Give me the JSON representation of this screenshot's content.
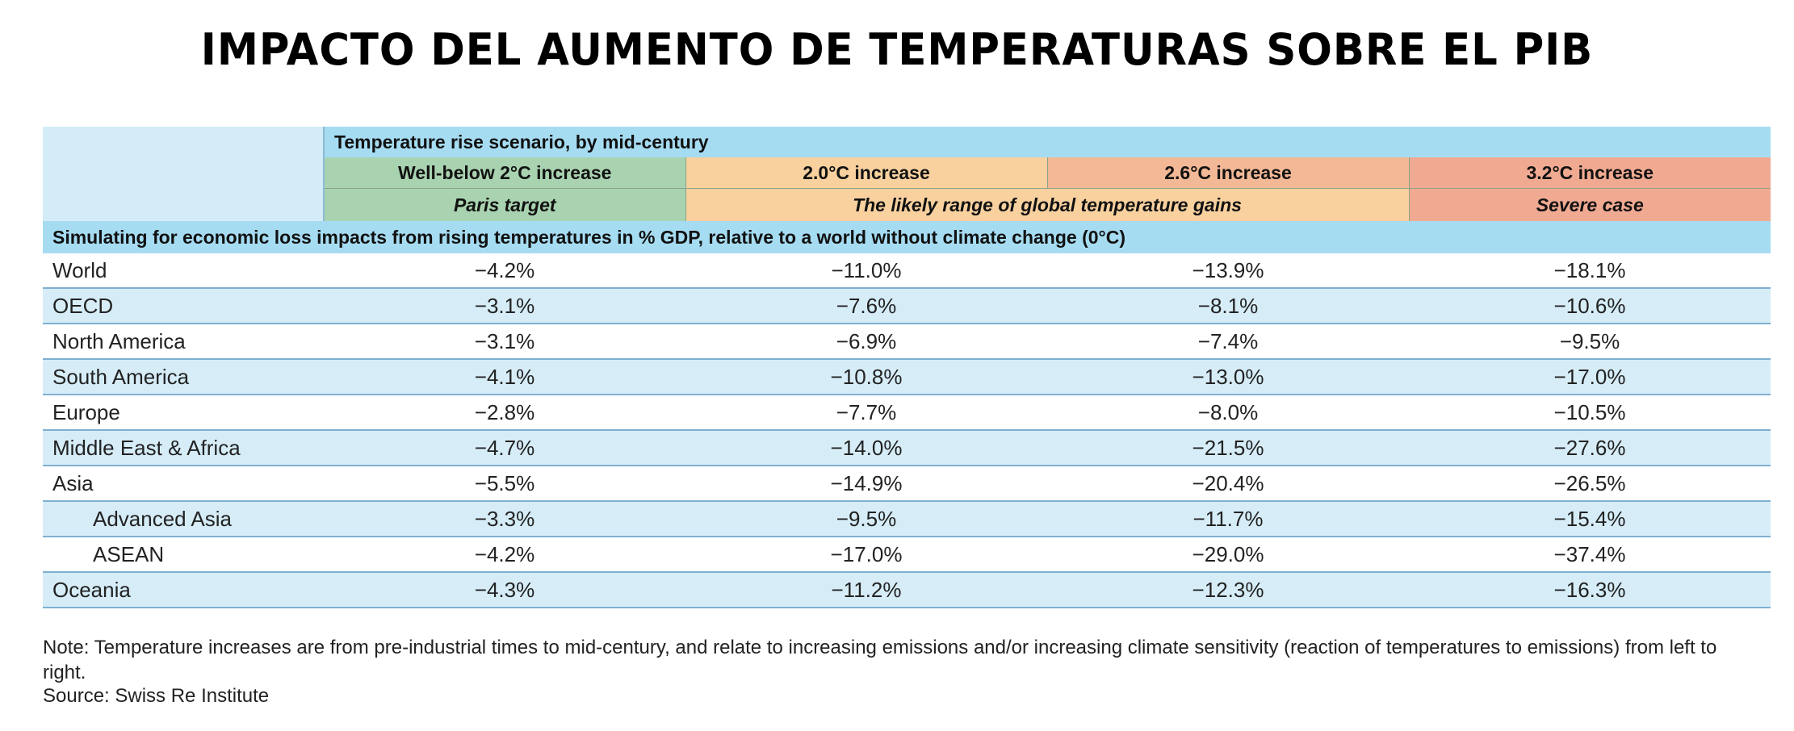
{
  "title": "IMPACTO DEL AUMENTO DE TEMPERATURAS SOBRE EL PIB",
  "header": {
    "scenario_label": "Temperature rise scenario, by mid-century",
    "columns": [
      "Well-below 2°C increase",
      "2.0°C increase",
      "2.6°C increase",
      "3.2°C increase"
    ],
    "groups": {
      "paris": "Paris target",
      "likely": "The likely range of global temperature gains",
      "severe": "Severe case"
    },
    "simulation_label": "Simulating for economic loss impacts from rising temperatures in % GDP, relative to a world without climate change (0°C)"
  },
  "colors": {
    "header_blue": "#a6dcf2",
    "row_blue": "#d6edf8",
    "green": "#a9d3b0",
    "orange": "#f8d19f",
    "salmon": "#f3b896",
    "red": "#f1aa92"
  },
  "chart_data": {
    "type": "table",
    "columns": [
      "Well-below 2°C increase",
      "2.0°C increase",
      "2.6°C increase",
      "3.2°C increase"
    ],
    "rows": [
      {
        "region": "World",
        "indent": false,
        "values": [
          "−4.2%",
          "−11.0%",
          "−13.9%",
          "−18.1%"
        ]
      },
      {
        "region": "OECD",
        "indent": false,
        "values": [
          "−3.1%",
          "−7.6%",
          "−8.1%",
          "−10.6%"
        ]
      },
      {
        "region": "North America",
        "indent": false,
        "values": [
          "−3.1%",
          "−6.9%",
          "−7.4%",
          "−9.5%"
        ]
      },
      {
        "region": "South America",
        "indent": false,
        "values": [
          "−4.1%",
          "−10.8%",
          "−13.0%",
          "−17.0%"
        ]
      },
      {
        "region": "Europe",
        "indent": false,
        "values": [
          "−2.8%",
          "−7.7%",
          "−8.0%",
          "−10.5%"
        ]
      },
      {
        "region": "Middle East & Africa",
        "indent": false,
        "values": [
          "−4.7%",
          "−14.0%",
          "−21.5%",
          "−27.6%"
        ]
      },
      {
        "region": "Asia",
        "indent": false,
        "values": [
          "−5.5%",
          "−14.9%",
          "−20.4%",
          "−26.5%"
        ]
      },
      {
        "region": "Advanced Asia",
        "indent": true,
        "values": [
          "−3.3%",
          "−9.5%",
          "−11.7%",
          "−15.4%"
        ]
      },
      {
        "region": "ASEAN",
        "indent": true,
        "values": [
          "−4.2%",
          "−17.0%",
          "−29.0%",
          "−37.4%"
        ]
      },
      {
        "region": "Oceania",
        "indent": false,
        "values": [
          "−4.3%",
          "−11.2%",
          "−12.3%",
          "−16.3%"
        ]
      }
    ]
  },
  "note": "Note: Temperature increases are from pre-industrial times to mid-century, and relate to increasing emissions and/or increasing climate sensitivity (reaction of temperatures to emissions) from left to right.",
  "source": "Source: Swiss Re Institute"
}
